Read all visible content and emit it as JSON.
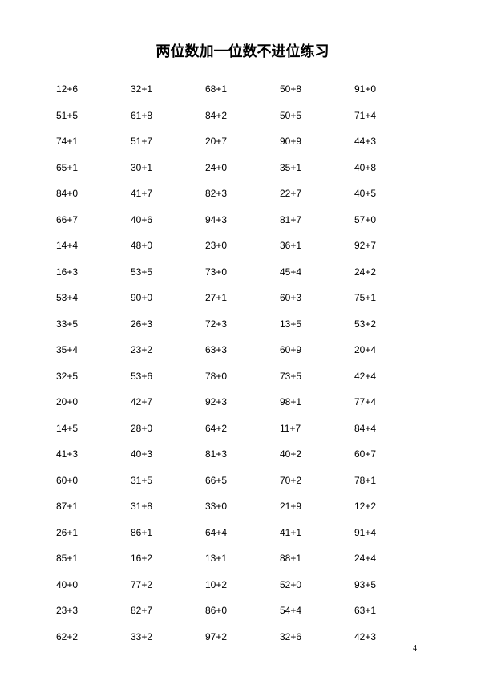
{
  "title": "两位数加一位数不进位练习",
  "page_number": "4",
  "rows": [
    [
      "12+6",
      "32+1",
      "68+1",
      "50+8",
      "91+0"
    ],
    [
      "51+5",
      "61+8",
      "84+2",
      "50+5",
      "71+4"
    ],
    [
      "74+1",
      "51+7",
      "20+7",
      "90+9",
      "44+3"
    ],
    [
      "65+1",
      "30+1",
      "24+0",
      "35+1",
      "40+8"
    ],
    [
      "84+0",
      "41+7",
      "82+3",
      "22+7",
      "40+5"
    ],
    [
      "66+7",
      "40+6",
      "94+3",
      "81+7",
      "57+0"
    ],
    [
      "14+4",
      "48+0",
      "23+0",
      "36+1",
      "92+7"
    ],
    [
      "16+3",
      "53+5",
      "73+0",
      "45+4",
      "24+2"
    ],
    [
      "53+4",
      "90+0",
      "27+1",
      "60+3",
      "75+1"
    ],
    [
      "33+5",
      "26+3",
      "72+3",
      "13+5",
      "53+2"
    ],
    [
      "35+4",
      "23+2",
      "63+3",
      "60+9",
      "20+4"
    ],
    [
      "32+5",
      "53+6",
      "78+0",
      "73+5",
      "42+4"
    ],
    [
      "20+0",
      "42+7",
      "92+3",
      "98+1",
      "77+4"
    ],
    [
      "14+5",
      "28+0",
      "64+2",
      "11+7",
      "84+4"
    ],
    [
      "41+3",
      "40+3",
      "81+3",
      "40+2",
      "60+7"
    ],
    [
      "60+0",
      "31+5",
      "66+5",
      "70+2",
      "78+1"
    ],
    [
      "87+1",
      "31+8",
      "33+0",
      "21+9",
      "12+2"
    ],
    [
      "26+1",
      "86+1",
      "64+4",
      "41+1",
      "91+4"
    ],
    [
      "85+1",
      "16+2",
      "13+1",
      "88+1",
      "24+4"
    ],
    [
      "40+0",
      "77+2",
      "10+2",
      "52+0",
      "93+5"
    ],
    [
      "23+3",
      "82+7",
      "86+0",
      "54+4",
      "63+1"
    ],
    [
      "62+2",
      "33+2",
      "97+2",
      "32+6",
      "42+3"
    ]
  ],
  "style": {
    "background_color": "#ffffff",
    "text_color": "#000000",
    "title_fontsize": 18,
    "cell_fontsize": 12,
    "pagenum_fontsize": 10
  }
}
